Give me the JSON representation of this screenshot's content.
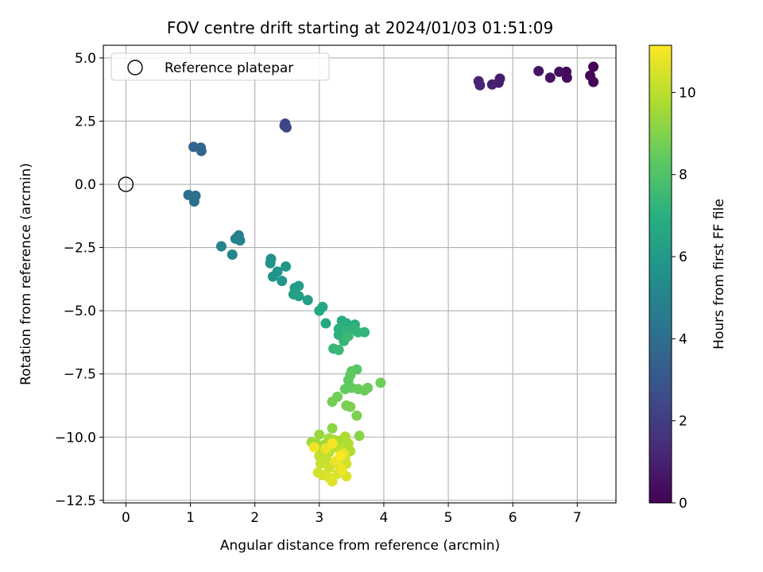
{
  "chart_data": {
    "type": "scatter",
    "title": "FOV centre drift starting at 2024/01/03 01:51:09",
    "xlabel": "Angular distance from reference (arcmin)",
    "ylabel": "Rotation from reference (arcmin)",
    "xlim": [
      -0.35,
      7.6
    ],
    "ylim": [
      -12.6,
      5.5
    ],
    "x_ticks": [
      0,
      1,
      2,
      3,
      4,
      5,
      6,
      7
    ],
    "x_tick_labels": [
      "0",
      "1",
      "2",
      "3",
      "4",
      "5",
      "6",
      "7"
    ],
    "y_ticks": [
      5.0,
      2.5,
      0.0,
      -2.5,
      -5.0,
      -7.5,
      -10.0,
      -12.5
    ],
    "y_tick_labels": [
      "5.0",
      "2.5",
      "0.0",
      "−2.5",
      "−5.0",
      "−7.5",
      "−10.0",
      "−12.5"
    ],
    "grid": true,
    "legend": {
      "position": "top-left",
      "entries": [
        "Reference platepar"
      ]
    },
    "reference_point": {
      "x": 0.0,
      "y": 0.0
    },
    "colorbar": {
      "label": "Hours from first FF file",
      "colormap": "viridis",
      "range": [
        0,
        11.15
      ],
      "ticks": [
        0,
        2,
        4,
        6,
        8,
        10
      ],
      "tick_labels": [
        "0",
        "2",
        "4",
        "6",
        "8",
        "10"
      ]
    },
    "points": [
      {
        "x": 7.25,
        "y": 4.65,
        "t": 0.05
      },
      {
        "x": 7.2,
        "y": 4.3,
        "t": 0.1
      },
      {
        "x": 7.25,
        "y": 4.05,
        "t": 0.12
      },
      {
        "x": 6.83,
        "y": 4.45,
        "t": 0.3
      },
      {
        "x": 6.84,
        "y": 4.22,
        "t": 0.35
      },
      {
        "x": 6.72,
        "y": 4.45,
        "t": 0.4
      },
      {
        "x": 6.58,
        "y": 4.22,
        "t": 0.5
      },
      {
        "x": 6.4,
        "y": 4.48,
        "t": 0.6
      },
      {
        "x": 5.8,
        "y": 4.18,
        "t": 0.9
      },
      {
        "x": 5.78,
        "y": 4.02,
        "t": 0.95
      },
      {
        "x": 5.68,
        "y": 3.95,
        "t": 1.0
      },
      {
        "x": 5.47,
        "y": 4.08,
        "t": 1.1
      },
      {
        "x": 5.49,
        "y": 3.92,
        "t": 1.15
      },
      {
        "x": 2.47,
        "y": 2.4,
        "t": 2.3
      },
      {
        "x": 2.49,
        "y": 2.25,
        "t": 2.4
      },
      {
        "x": 2.46,
        "y": 2.32,
        "t": 2.35
      },
      {
        "x": 1.05,
        "y": 1.48,
        "t": 3.5
      },
      {
        "x": 1.16,
        "y": 1.45,
        "t": 3.6
      },
      {
        "x": 1.17,
        "y": 1.32,
        "t": 3.65
      },
      {
        "x": 0.97,
        "y": -0.42,
        "t": 4.0
      },
      {
        "x": 1.08,
        "y": -0.45,
        "t": 4.05
      },
      {
        "x": 1.06,
        "y": -0.68,
        "t": 4.1
      },
      {
        "x": 1.75,
        "y": -2.02,
        "t": 4.8
      },
      {
        "x": 1.7,
        "y": -2.15,
        "t": 4.85
      },
      {
        "x": 1.77,
        "y": -2.22,
        "t": 4.9
      },
      {
        "x": 1.48,
        "y": -2.45,
        "t": 5.0
      },
      {
        "x": 1.65,
        "y": -2.78,
        "t": 5.05
      },
      {
        "x": 2.25,
        "y": -2.95,
        "t": 5.6
      },
      {
        "x": 2.24,
        "y": -3.12,
        "t": 5.65
      },
      {
        "x": 2.35,
        "y": -3.45,
        "t": 5.7
      },
      {
        "x": 2.28,
        "y": -3.65,
        "t": 5.75
      },
      {
        "x": 2.42,
        "y": -3.82,
        "t": 5.8
      },
      {
        "x": 2.48,
        "y": -3.25,
        "t": 5.85
      },
      {
        "x": 2.62,
        "y": -4.1,
        "t": 6.1
      },
      {
        "x": 2.68,
        "y": -4.02,
        "t": 6.15
      },
      {
        "x": 2.6,
        "y": -4.35,
        "t": 6.2
      },
      {
        "x": 2.68,
        "y": -4.42,
        "t": 6.25
      },
      {
        "x": 2.82,
        "y": -4.58,
        "t": 6.3
      },
      {
        "x": 3.0,
        "y": -5.0,
        "t": 6.6
      },
      {
        "x": 3.05,
        "y": -4.85,
        "t": 6.65
      },
      {
        "x": 3.1,
        "y": -5.5,
        "t": 6.7
      },
      {
        "x": 3.35,
        "y": -5.4,
        "t": 6.9
      },
      {
        "x": 3.42,
        "y": -5.5,
        "t": 6.95
      },
      {
        "x": 3.55,
        "y": -5.55,
        "t": 7.0
      },
      {
        "x": 3.3,
        "y": -5.72,
        "t": 7.05
      },
      {
        "x": 3.3,
        "y": -5.95,
        "t": 7.1
      },
      {
        "x": 3.45,
        "y": -5.8,
        "t": 7.15
      },
      {
        "x": 3.55,
        "y": -5.72,
        "t": 7.2
      },
      {
        "x": 3.6,
        "y": -5.85,
        "t": 7.25
      },
      {
        "x": 3.7,
        "y": -5.85,
        "t": 7.3
      },
      {
        "x": 3.38,
        "y": -6.2,
        "t": 7.35
      },
      {
        "x": 3.22,
        "y": -6.5,
        "t": 7.4
      },
      {
        "x": 3.3,
        "y": -6.55,
        "t": 7.45
      },
      {
        "x": 3.45,
        "y": -6.0,
        "t": 7.5
      },
      {
        "x": 3.58,
        "y": -7.32,
        "t": 8.2
      },
      {
        "x": 3.5,
        "y": -7.4,
        "t": 8.25
      },
      {
        "x": 3.48,
        "y": -7.55,
        "t": 8.3
      },
      {
        "x": 3.45,
        "y": -7.75,
        "t": 8.35
      },
      {
        "x": 3.4,
        "y": -8.1,
        "t": 8.4
      },
      {
        "x": 3.5,
        "y": -8.05,
        "t": 8.45
      },
      {
        "x": 3.6,
        "y": -8.1,
        "t": 8.5
      },
      {
        "x": 3.7,
        "y": -8.15,
        "t": 8.55
      },
      {
        "x": 3.75,
        "y": -8.05,
        "t": 8.6
      },
      {
        "x": 3.95,
        "y": -7.85,
        "t": 8.65
      },
      {
        "x": 3.28,
        "y": -8.4,
        "t": 8.7
      },
      {
        "x": 3.2,
        "y": -8.6,
        "t": 8.75
      },
      {
        "x": 3.42,
        "y": -8.75,
        "t": 8.8
      },
      {
        "x": 3.48,
        "y": -8.8,
        "t": 8.85
      },
      {
        "x": 3.58,
        "y": -9.15,
        "t": 8.9
      },
      {
        "x": 3.62,
        "y": -9.95,
        "t": 9.1
      },
      {
        "x": 3.2,
        "y": -9.65,
        "t": 9.15
      },
      {
        "x": 3.0,
        "y": -9.9,
        "t": 9.4
      },
      {
        "x": 2.88,
        "y": -10.2,
        "t": 9.45
      },
      {
        "x": 2.95,
        "y": -10.25,
        "t": 9.5
      },
      {
        "x": 3.08,
        "y": -10.3,
        "t": 9.55
      },
      {
        "x": 3.15,
        "y": -10.05,
        "t": 9.6
      },
      {
        "x": 3.22,
        "y": -10.1,
        "t": 9.65
      },
      {
        "x": 3.3,
        "y": -10.15,
        "t": 9.7
      },
      {
        "x": 3.4,
        "y": -9.98,
        "t": 9.75
      },
      {
        "x": 3.45,
        "y": -10.25,
        "t": 9.8
      },
      {
        "x": 3.48,
        "y": -10.55,
        "t": 9.85
      },
      {
        "x": 3.05,
        "y": -10.55,
        "t": 9.9
      },
      {
        "x": 3.15,
        "y": -10.6,
        "t": 9.95
      },
      {
        "x": 3.25,
        "y": -10.4,
        "t": 10.0
      },
      {
        "x": 3.35,
        "y": -10.5,
        "t": 10.05
      },
      {
        "x": 3.0,
        "y": -10.75,
        "t": 10.1
      },
      {
        "x": 3.1,
        "y": -10.85,
        "t": 10.15
      },
      {
        "x": 3.4,
        "y": -10.8,
        "t": 10.2
      },
      {
        "x": 3.02,
        "y": -11.05,
        "t": 10.25
      },
      {
        "x": 3.15,
        "y": -11.2,
        "t": 10.3
      },
      {
        "x": 3.42,
        "y": -11.05,
        "t": 10.35
      },
      {
        "x": 2.98,
        "y": -11.4,
        "t": 10.4
      },
      {
        "x": 3.05,
        "y": -11.5,
        "t": 10.45
      },
      {
        "x": 3.28,
        "y": -11.45,
        "t": 10.5
      },
      {
        "x": 3.42,
        "y": -11.55,
        "t": 10.55
      },
      {
        "x": 3.15,
        "y": -11.6,
        "t": 10.6
      },
      {
        "x": 3.2,
        "y": -11.75,
        "t": 10.65
      },
      {
        "x": 3.3,
        "y": -11.1,
        "t": 10.7
      },
      {
        "x": 3.38,
        "y": -10.65,
        "t": 10.75
      },
      {
        "x": 3.25,
        "y": -10.95,
        "t": 10.8
      },
      {
        "x": 3.1,
        "y": -10.45,
        "t": 10.85
      },
      {
        "x": 3.35,
        "y": -11.3,
        "t": 10.9
      },
      {
        "x": 2.92,
        "y": -10.4,
        "t": 10.95
      },
      {
        "x": 3.2,
        "y": -10.25,
        "t": 11.0
      },
      {
        "x": 3.32,
        "y": -10.75,
        "t": 11.1
      }
    ]
  }
}
